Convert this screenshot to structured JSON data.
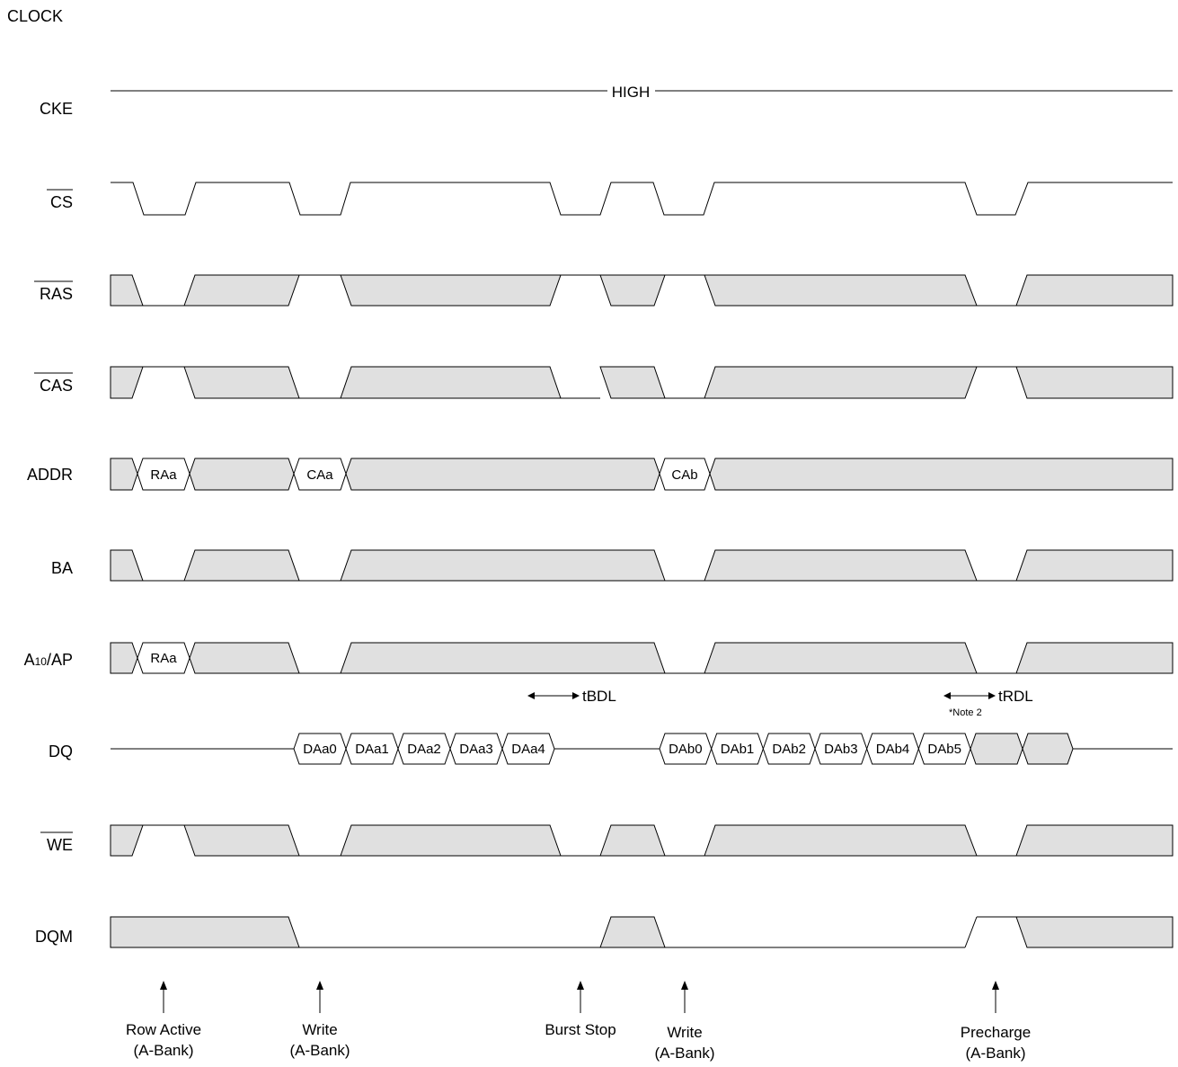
{
  "signals": [
    {
      "id": "clock",
      "label": "CLOCK",
      "overbar": false
    },
    {
      "id": "cke",
      "label": "CKE",
      "overbar": false
    },
    {
      "id": "cs",
      "label": "CS",
      "overbar": true
    },
    {
      "id": "ras",
      "label": "RAS",
      "overbar": true
    },
    {
      "id": "cas",
      "label": "CAS",
      "overbar": true
    },
    {
      "id": "addr",
      "label": "ADDR",
      "overbar": false
    },
    {
      "id": "ba",
      "label": "BA",
      "overbar": false
    },
    {
      "id": "a10",
      "label": "A10/AP",
      "label_main": "A",
      "label_sub": "10",
      "label_rest": "/AP",
      "overbar": false
    },
    {
      "id": "dq",
      "label": "DQ",
      "overbar": false
    },
    {
      "id": "we",
      "label": "WE",
      "overbar": true
    },
    {
      "id": "dqm",
      "label": "DQM",
      "overbar": false
    }
  ],
  "cke_level": "HIGH",
  "addr_values": [
    "RAa",
    "CAa",
    "CAb"
  ],
  "a10_values": [
    "RAa"
  ],
  "dq_values": {
    "burst_a": [
      "DAa0",
      "DAa1",
      "DAa2",
      "DAa3",
      "DAa4"
    ],
    "burst_b": [
      "DAb0",
      "DAb1",
      "DAb2",
      "DAb3",
      "DAb4",
      "DAb5"
    ]
  },
  "timing": {
    "tbdl": "tBDL",
    "trdl": "tRDL",
    "note": "*Note 2"
  },
  "commands": [
    {
      "line1": "Row Active",
      "line2": "(A-Bank)"
    },
    {
      "line1": "Write",
      "line2": "(A-Bank)"
    },
    {
      "line1": "Burst Stop",
      "line2": ""
    },
    {
      "line1": "Write",
      "line2": "(A-Bank)"
    },
    {
      "line1": "Precharge",
      "line2": "(A-Bank)"
    }
  ],
  "colors": {
    "shade": "#e0e0e0",
    "line": "#000000"
  }
}
